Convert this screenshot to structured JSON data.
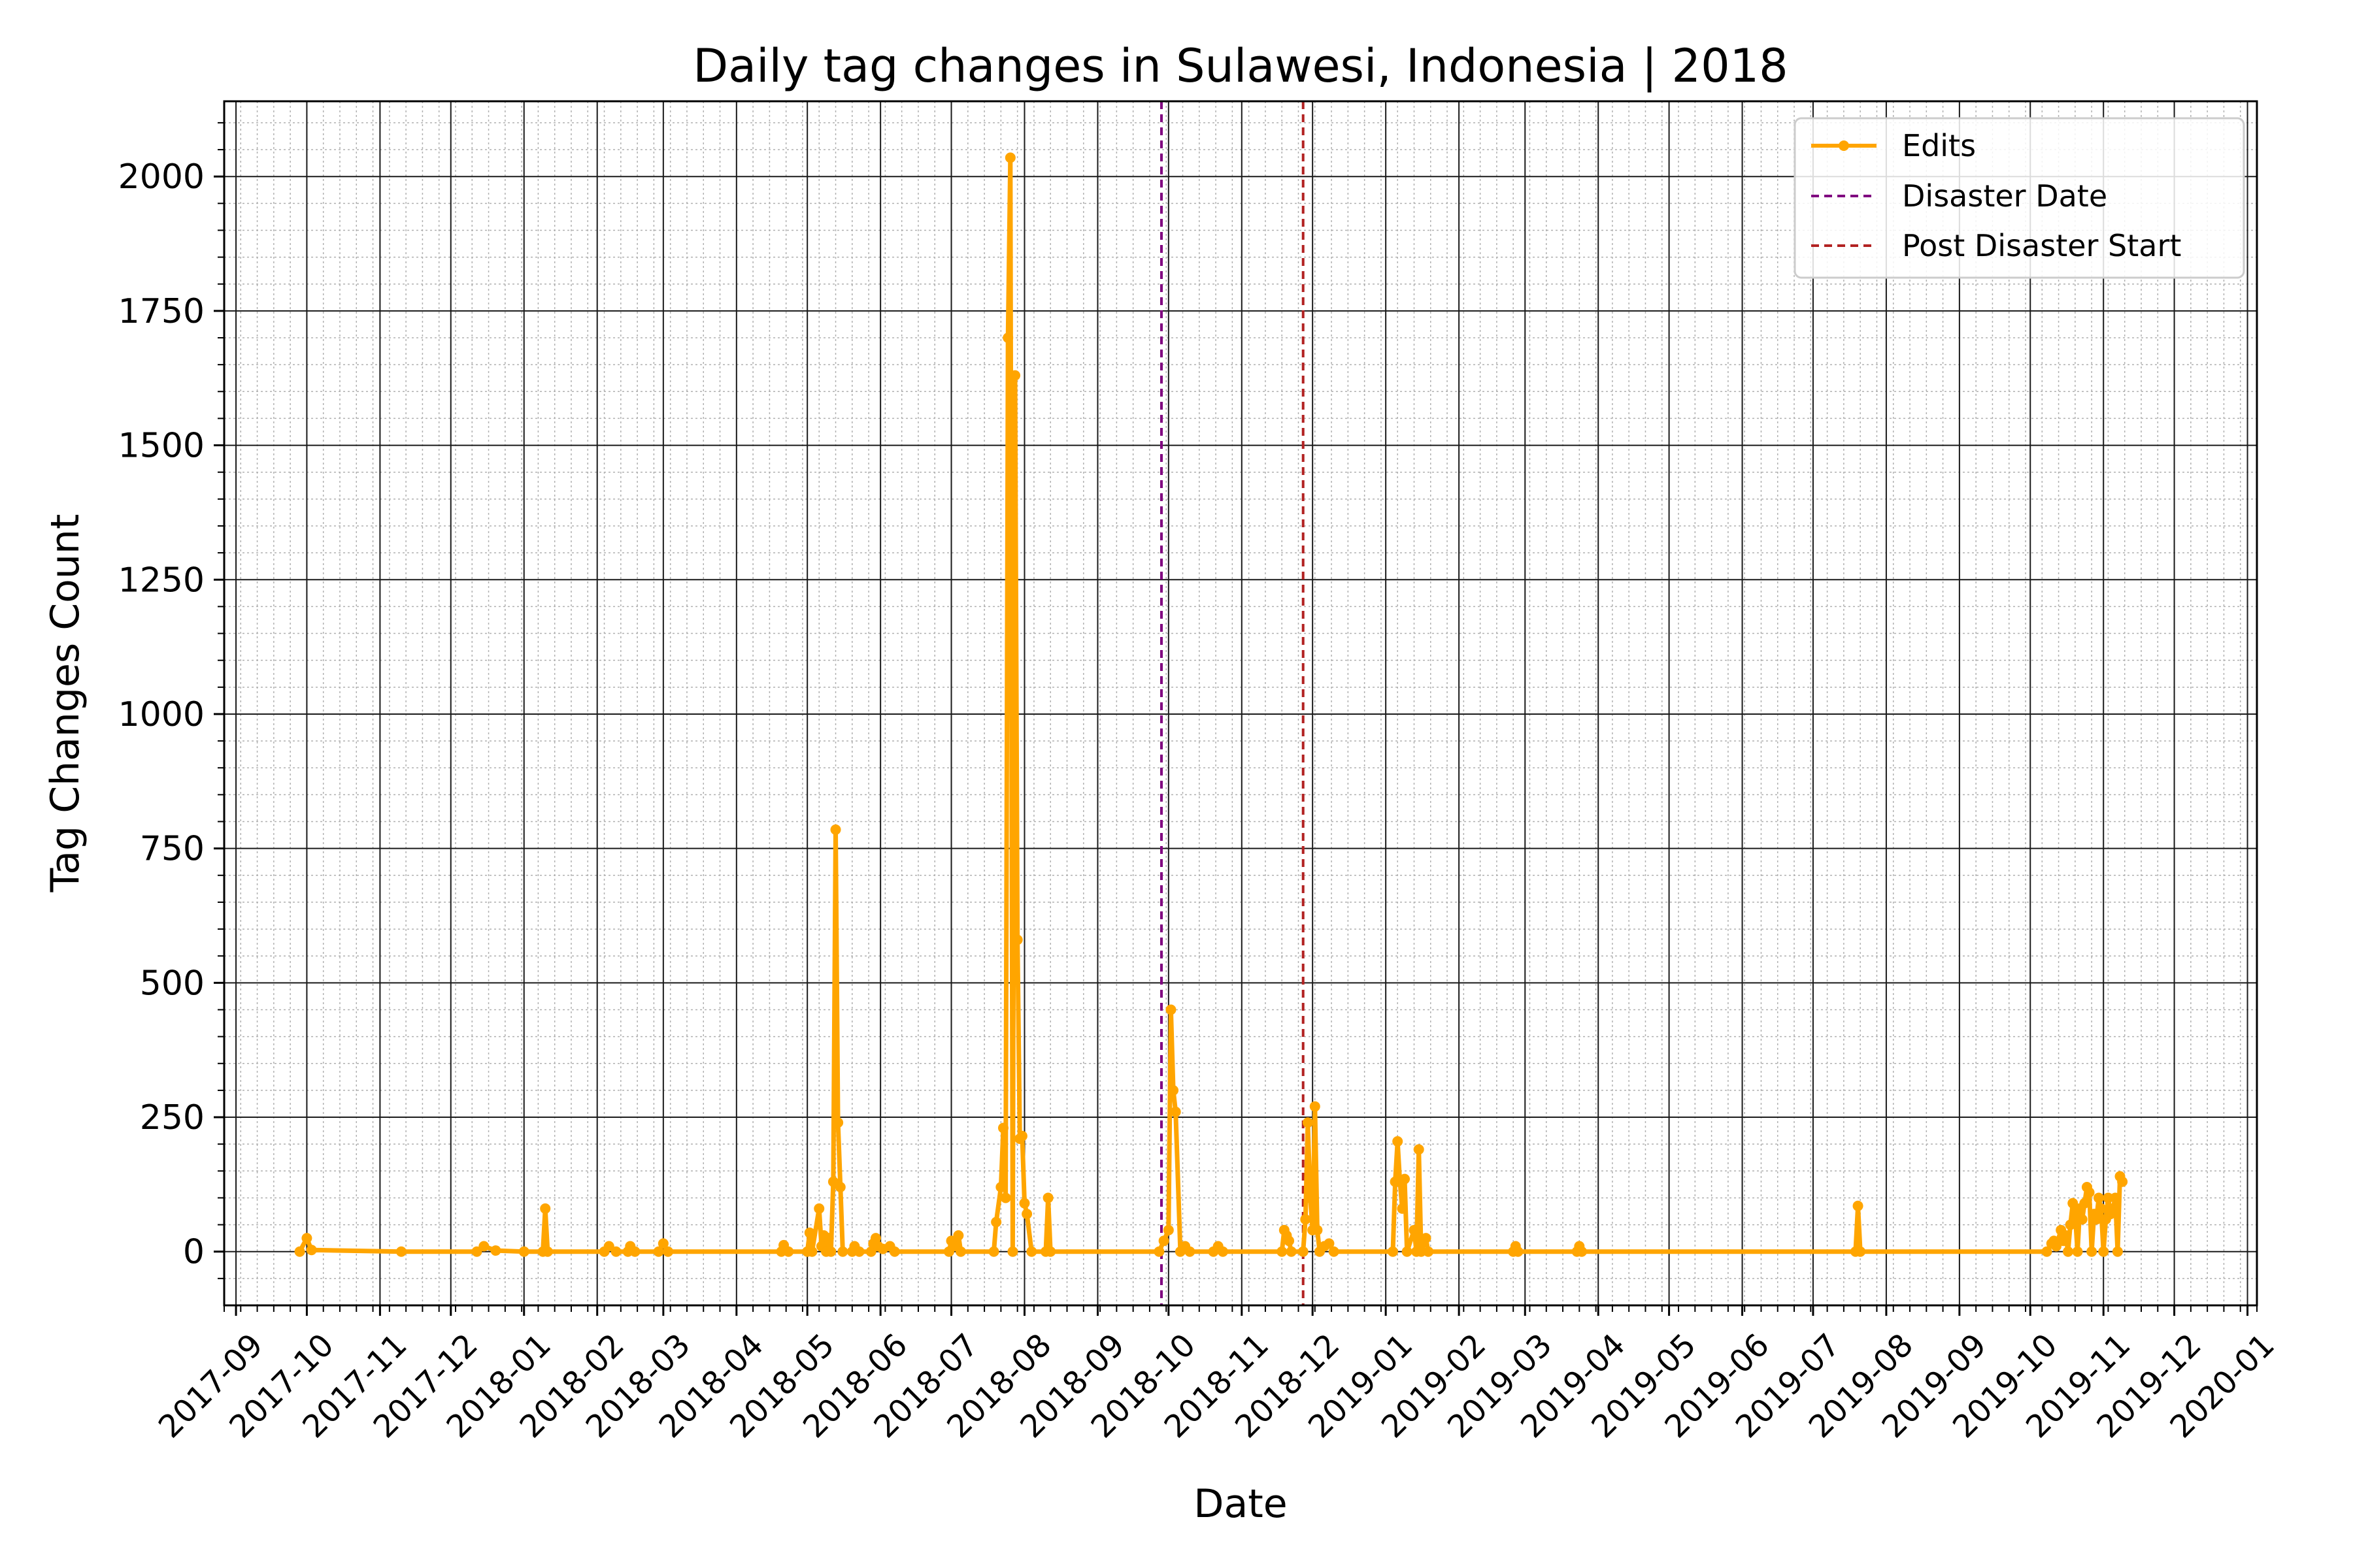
{
  "chart_data": {
    "type": "line",
    "title": "Daily tag changes in Sulawesi, Indonesia | 2018",
    "xlabel": "Date",
    "ylabel": "Tag Changes Count",
    "x_axis": {
      "kind": "date",
      "range": [
        "2017-08-27",
        "2020-01-05"
      ],
      "tick_labels": [
        "2017-09",
        "2017-10",
        "2017-11",
        "2017-12",
        "2018-01",
        "2018-02",
        "2018-03",
        "2018-04",
        "2018-05",
        "2018-06",
        "2018-07",
        "2018-08",
        "2018-09",
        "2018-10",
        "2018-11",
        "2018-12",
        "2019-01",
        "2019-02",
        "2019-03",
        "2019-04",
        "2019-05",
        "2019-06",
        "2019-07",
        "2019-08",
        "2019-09",
        "2019-10",
        "2019-11",
        "2019-12",
        "2020-01"
      ]
    },
    "y_axis": {
      "range": [
        -100,
        2140
      ],
      "tick_labels": [
        "0",
        "250",
        "500",
        "750",
        "1000",
        "1250",
        "1500",
        "1750",
        "2000"
      ]
    },
    "grid": {
      "major": true,
      "minor": true
    },
    "legend": {
      "position": "top-right",
      "entries": [
        {
          "label": "Edits",
          "color": "#FFA500",
          "style": "solid-line-with-markers"
        },
        {
          "label": "Disaster Date",
          "color": "#800080",
          "style": "dashed"
        },
        {
          "label": "Post Disaster Start",
          "color": "#B22222",
          "style": "dashed"
        }
      ]
    },
    "vertical_lines": [
      {
        "name": "Disaster Date",
        "date": "2018-09-28",
        "color": "#800080"
      },
      {
        "name": "Post Disaster Start",
        "date": "2018-11-27",
        "color": "#B22222"
      }
    ],
    "series": [
      {
        "name": "Edits",
        "color": "#FFA500",
        "points": [
          [
            "2017-09-28",
            0
          ],
          [
            "2017-10-01",
            25
          ],
          [
            "2017-10-03",
            3
          ],
          [
            "2017-11-10",
            0
          ],
          [
            "2017-12-12",
            0
          ],
          [
            "2017-12-15",
            10
          ],
          [
            "2017-12-20",
            2
          ],
          [
            "2018-01-01",
            0
          ],
          [
            "2018-01-09",
            0
          ],
          [
            "2018-01-10",
            80
          ],
          [
            "2018-01-11",
            0
          ],
          [
            "2018-02-04",
            0
          ],
          [
            "2018-02-06",
            10
          ],
          [
            "2018-02-09",
            0
          ],
          [
            "2018-02-14",
            0
          ],
          [
            "2018-02-15",
            10
          ],
          [
            "2018-02-17",
            0
          ],
          [
            "2018-02-27",
            0
          ],
          [
            "2018-03-01",
            15
          ],
          [
            "2018-03-03",
            0
          ],
          [
            "2018-04-20",
            0
          ],
          [
            "2018-04-21",
            12
          ],
          [
            "2018-04-23",
            0
          ],
          [
            "2018-05-01",
            0
          ],
          [
            "2018-05-02",
            35
          ],
          [
            "2018-05-03",
            0
          ],
          [
            "2018-05-06",
            80
          ],
          [
            "2018-05-07",
            10
          ],
          [
            "2018-05-08",
            30
          ],
          [
            "2018-05-09",
            0
          ],
          [
            "2018-05-10",
            25
          ],
          [
            "2018-05-11",
            0
          ],
          [
            "2018-05-12",
            130
          ],
          [
            "2018-05-13",
            785
          ],
          [
            "2018-05-14",
            240
          ],
          [
            "2018-05-15",
            120
          ],
          [
            "2018-05-16",
            0
          ],
          [
            "2018-05-20",
            0
          ],
          [
            "2018-05-21",
            10
          ],
          [
            "2018-05-23",
            0
          ],
          [
            "2018-05-28",
            0
          ],
          [
            "2018-05-29",
            15
          ],
          [
            "2018-05-30",
            25
          ],
          [
            "2018-05-31",
            10
          ],
          [
            "2018-06-02",
            5
          ],
          [
            "2018-06-05",
            10
          ],
          [
            "2018-06-07",
            0
          ],
          [
            "2018-06-30",
            0
          ],
          [
            "2018-07-01",
            20
          ],
          [
            "2018-07-02",
            10
          ],
          [
            "2018-07-04",
            30
          ],
          [
            "2018-07-05",
            0
          ],
          [
            "2018-07-19",
            0
          ],
          [
            "2018-07-20",
            55
          ],
          [
            "2018-07-22",
            120
          ],
          [
            "2018-07-23",
            230
          ],
          [
            "2018-07-24",
            100
          ],
          [
            "2018-07-25",
            1700
          ],
          [
            "2018-07-26",
            2035
          ],
          [
            "2018-07-27",
            0
          ],
          [
            "2018-07-28",
            1630
          ],
          [
            "2018-07-29",
            580
          ],
          [
            "2018-07-30",
            210
          ],
          [
            "2018-07-31",
            215
          ],
          [
            "2018-08-01",
            90
          ],
          [
            "2018-08-02",
            70
          ],
          [
            "2018-08-04",
            0
          ],
          [
            "2018-08-10",
            0
          ],
          [
            "2018-08-11",
            100
          ],
          [
            "2018-08-12",
            0
          ],
          [
            "2018-09-27",
            0
          ],
          [
            "2018-09-29",
            20
          ],
          [
            "2018-10-01",
            40
          ],
          [
            "2018-10-02",
            450
          ],
          [
            "2018-10-03",
            300
          ],
          [
            "2018-10-04",
            260
          ],
          [
            "2018-10-06",
            0
          ],
          [
            "2018-10-08",
            10
          ],
          [
            "2018-10-10",
            0
          ],
          [
            "2018-10-20",
            0
          ],
          [
            "2018-10-22",
            10
          ],
          [
            "2018-10-24",
            0
          ],
          [
            "2018-11-18",
            0
          ],
          [
            "2018-11-19",
            40
          ],
          [
            "2018-11-20",
            30
          ],
          [
            "2018-11-21",
            20
          ],
          [
            "2018-11-22",
            0
          ],
          [
            "2018-11-27",
            0
          ],
          [
            "2018-11-28",
            60
          ],
          [
            "2018-11-29",
            240
          ],
          [
            "2018-11-30",
            100
          ],
          [
            "2018-12-01",
            40
          ],
          [
            "2018-12-02",
            270
          ],
          [
            "2018-12-03",
            40
          ],
          [
            "2018-12-04",
            0
          ],
          [
            "2018-12-06",
            10
          ],
          [
            "2018-12-08",
            15
          ],
          [
            "2018-12-10",
            0
          ],
          [
            "2019-01-04",
            0
          ],
          [
            "2019-01-05",
            130
          ],
          [
            "2019-01-06",
            205
          ],
          [
            "2019-01-07",
            130
          ],
          [
            "2019-01-08",
            80
          ],
          [
            "2019-01-09",
            135
          ],
          [
            "2019-01-10",
            0
          ],
          [
            "2019-01-13",
            40
          ],
          [
            "2019-01-14",
            0
          ],
          [
            "2019-01-15",
            190
          ],
          [
            "2019-01-16",
            0
          ],
          [
            "2019-01-18",
            25
          ],
          [
            "2019-01-19",
            0
          ],
          [
            "2019-02-24",
            0
          ],
          [
            "2019-02-25",
            10
          ],
          [
            "2019-02-26",
            0
          ],
          [
            "2019-03-23",
            0
          ],
          [
            "2019-03-24",
            10
          ],
          [
            "2019-03-25",
            0
          ],
          [
            "2019-07-19",
            0
          ],
          [
            "2019-07-20",
            85
          ],
          [
            "2019-07-21",
            0
          ],
          [
            "2019-10-08",
            0
          ],
          [
            "2019-10-10",
            15
          ],
          [
            "2019-10-11",
            20
          ],
          [
            "2019-10-12",
            10
          ],
          [
            "2019-10-14",
            40
          ],
          [
            "2019-10-15",
            20
          ],
          [
            "2019-10-16",
            30
          ],
          [
            "2019-10-17",
            0
          ],
          [
            "2019-10-18",
            50
          ],
          [
            "2019-10-19",
            90
          ],
          [
            "2019-10-20",
            70
          ],
          [
            "2019-10-21",
            0
          ],
          [
            "2019-10-22",
            80
          ],
          [
            "2019-10-23",
            60
          ],
          [
            "2019-10-24",
            90
          ],
          [
            "2019-10-25",
            120
          ],
          [
            "2019-10-26",
            110
          ],
          [
            "2019-10-27",
            0
          ],
          [
            "2019-10-28",
            70
          ],
          [
            "2019-10-29",
            60
          ],
          [
            "2019-10-30",
            100
          ],
          [
            "2019-10-31",
            80
          ],
          [
            "2019-11-01",
            0
          ],
          [
            "2019-11-02",
            60
          ],
          [
            "2019-11-03",
            100
          ],
          [
            "2019-11-04",
            70
          ],
          [
            "2019-11-05",
            80
          ],
          [
            "2019-11-06",
            100
          ],
          [
            "2019-11-07",
            0
          ],
          [
            "2019-11-08",
            140
          ],
          [
            "2019-11-09",
            130
          ]
        ]
      }
    ]
  }
}
